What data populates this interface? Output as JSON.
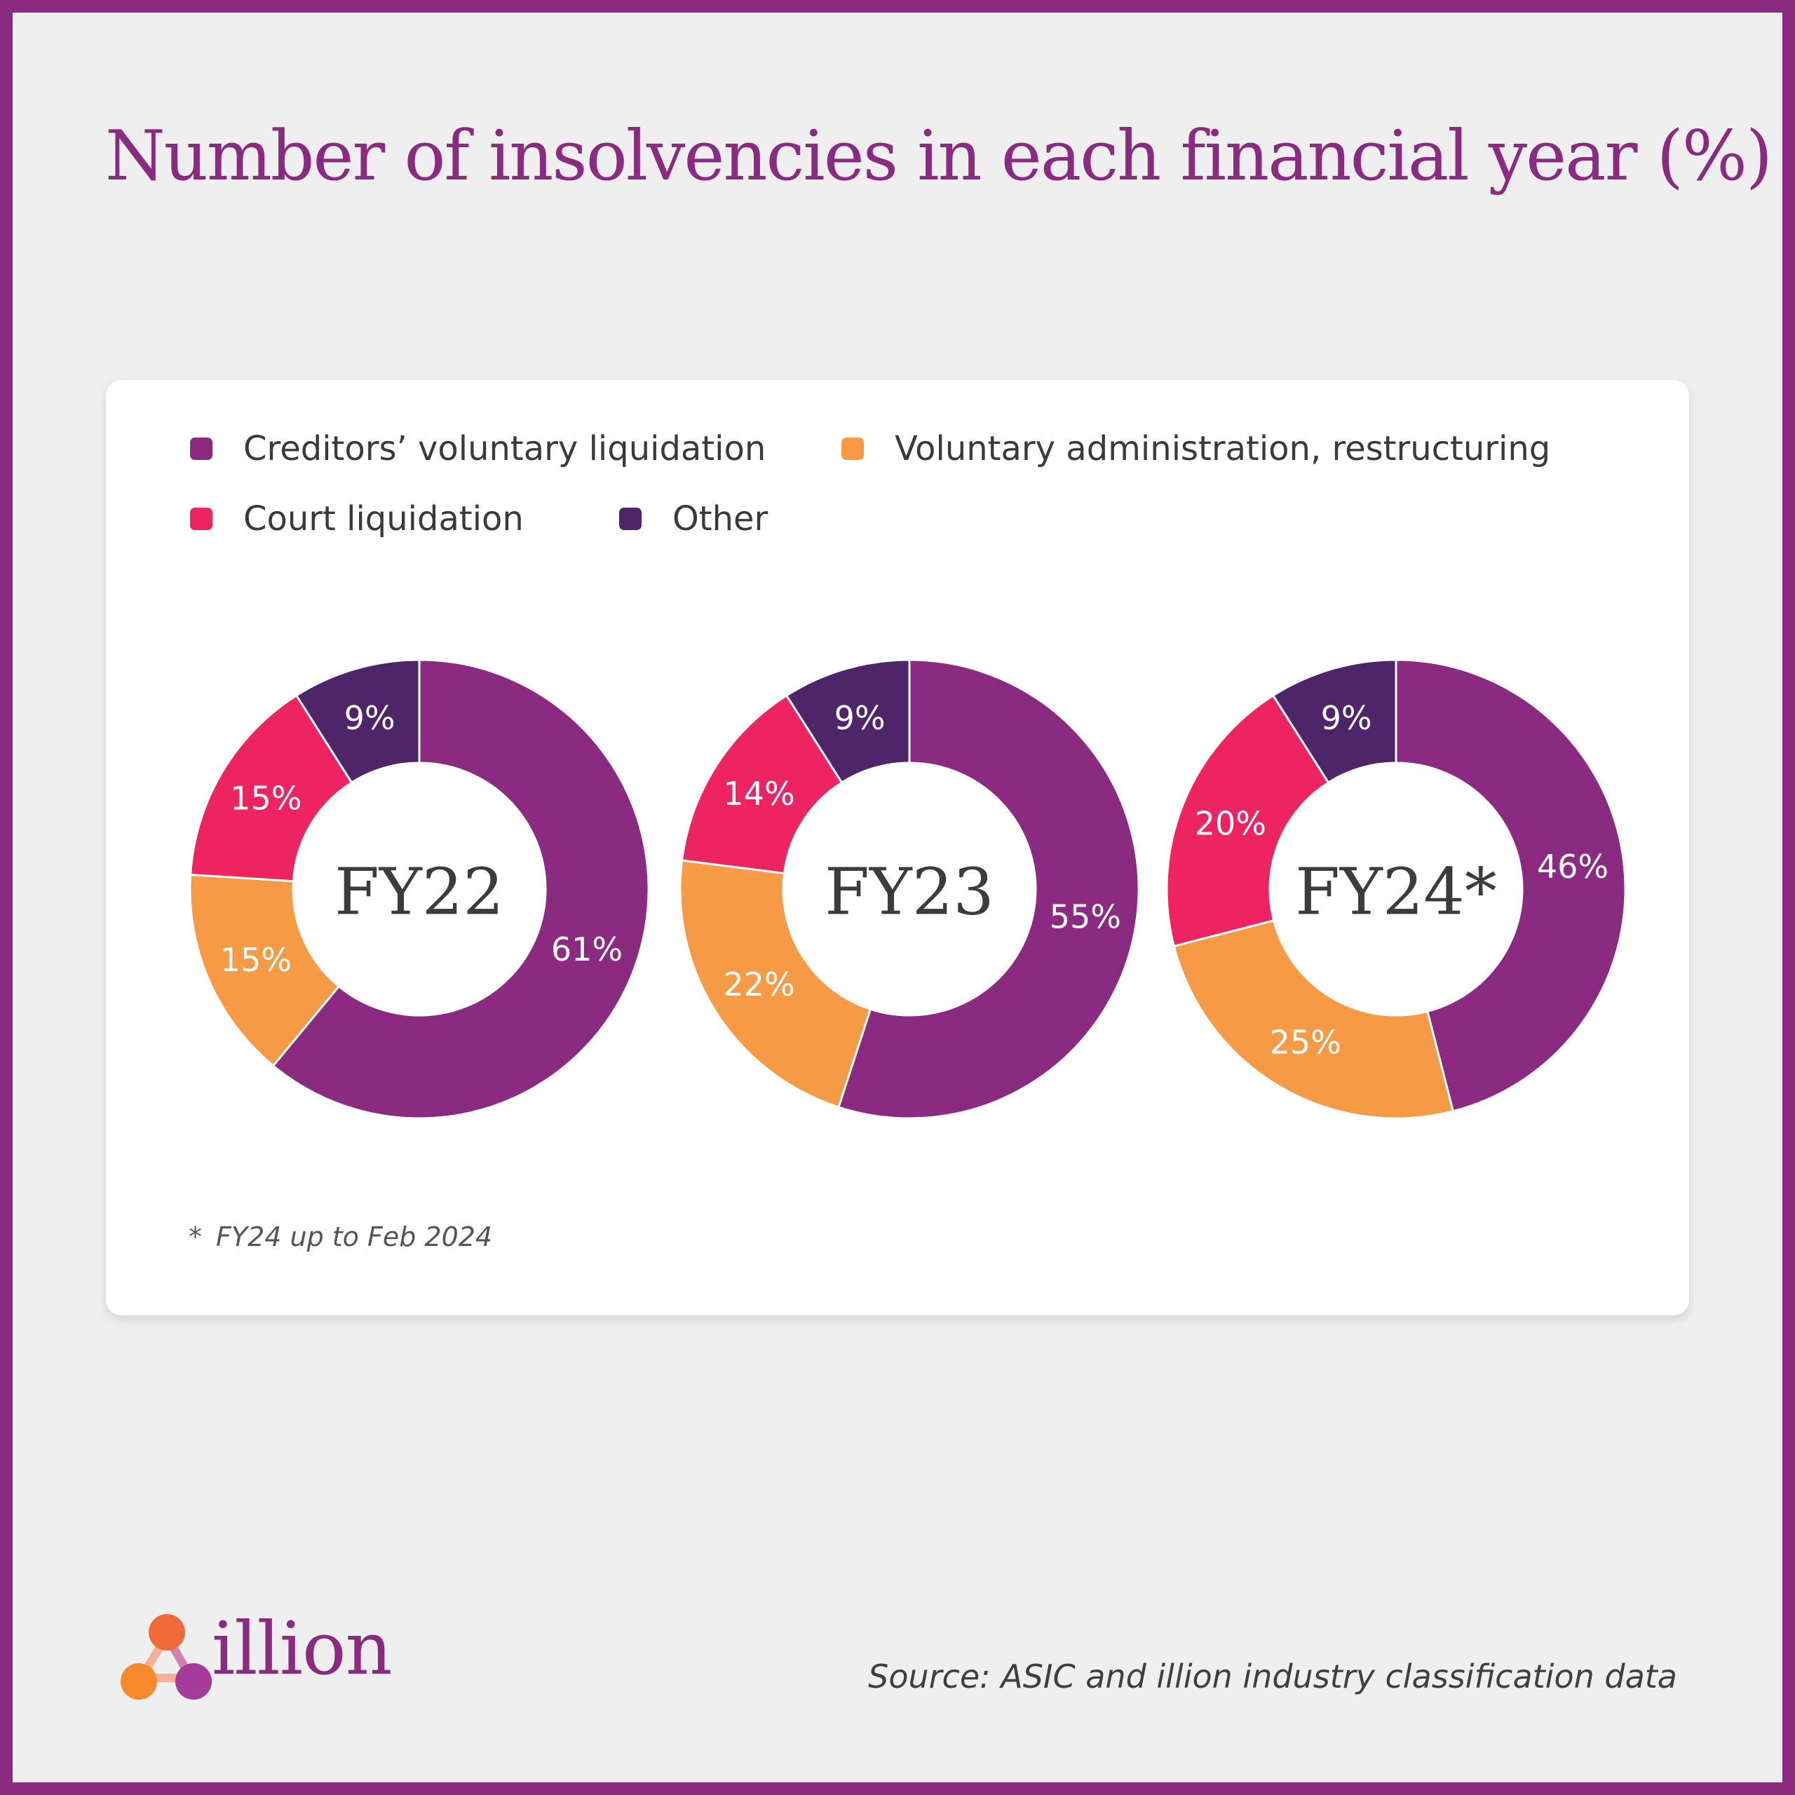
{
  "title": "Number of insolvencies in each financial year (%)",
  "legend": [
    {
      "label": "Creditors’ voluntary liquidation",
      "color": "#8b2a81"
    },
    {
      "label": "Voluntary administration, restructuring",
      "color": "#f79a46"
    },
    {
      "label": "Court liquidation",
      "color": "#ee2362"
    },
    {
      "label": "Other",
      "color": "#4e2568"
    }
  ],
  "chart_data": [
    {
      "type": "pie",
      "center_label": "FY22",
      "slices": [
        {
          "name": "Creditors’ voluntary liquidation",
          "value": 61,
          "label": "61%"
        },
        {
          "name": "Voluntary administration, restructuring",
          "value": 15,
          "label": "15%"
        },
        {
          "name": "Court liquidation",
          "value": 15,
          "label": "15%"
        },
        {
          "name": "Other",
          "value": 9,
          "label": "9%"
        }
      ]
    },
    {
      "type": "pie",
      "center_label": "FY23",
      "slices": [
        {
          "name": "Creditors’ voluntary liquidation",
          "value": 55,
          "label": "55%"
        },
        {
          "name": "Voluntary administration, restructuring",
          "value": 22,
          "label": "22%"
        },
        {
          "name": "Court liquidation",
          "value": 14,
          "label": "14%"
        },
        {
          "name": "Other",
          "value": 9,
          "label": "9%"
        }
      ]
    },
    {
      "type": "pie",
      "center_label": "FY24*",
      "slices": [
        {
          "name": "Creditors’ voluntary liquidation",
          "value": 46,
          "label": "46%"
        },
        {
          "name": "Voluntary administration, restructuring",
          "value": 25,
          "label": "25%"
        },
        {
          "name": "Court liquidation",
          "value": 20,
          "label": "20%"
        },
        {
          "name": "Other",
          "value": 9,
          "label": "9%"
        }
      ]
    }
  ],
  "footnote": {
    "marker": "*",
    "text": "FY24 up to Feb 2024"
  },
  "brand": {
    "name": "illion"
  },
  "source": "Source: ASIC and illion industry classification data"
}
